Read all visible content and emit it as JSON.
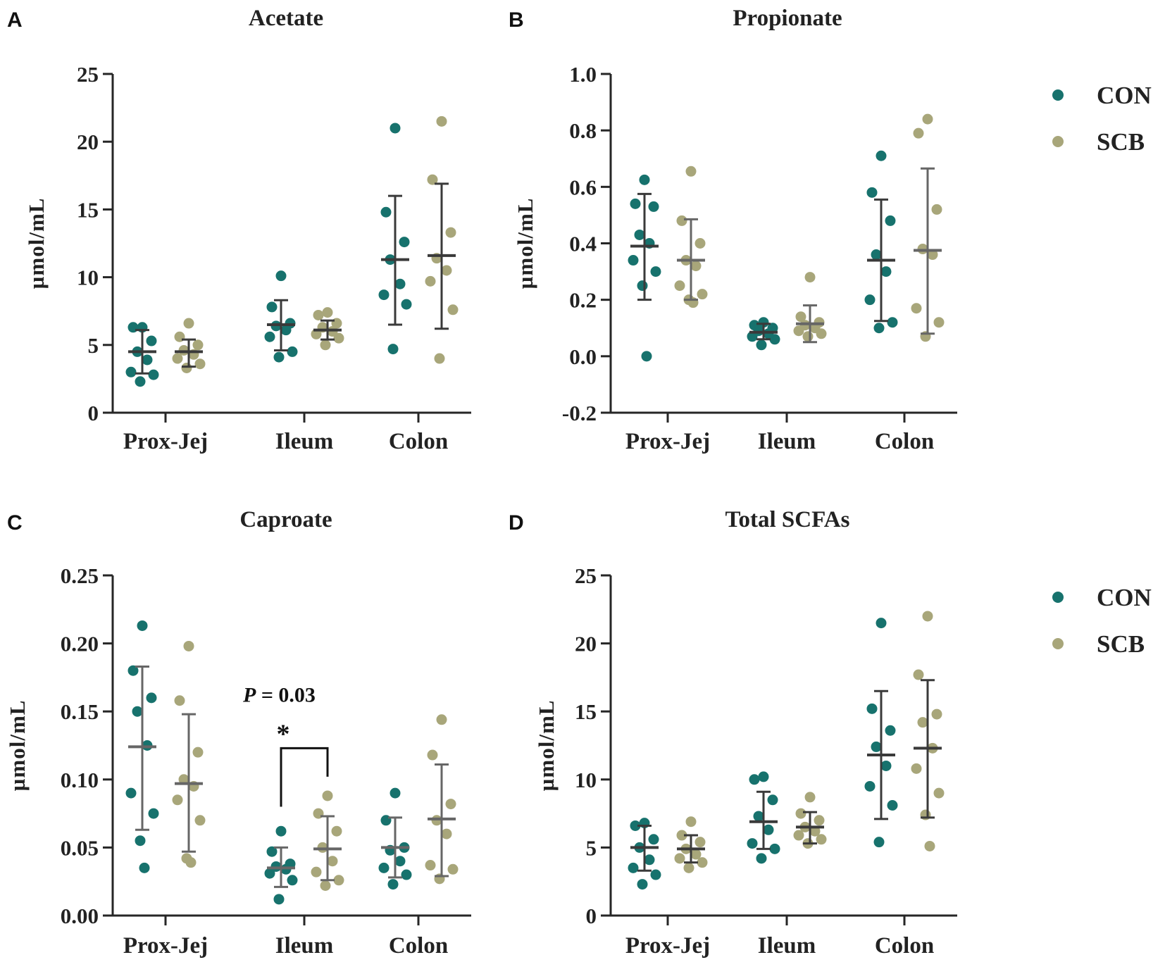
{
  "figure": {
    "legend": [
      {
        "name": "CON",
        "color": "#17726d"
      },
      {
        "name": "SCB",
        "color": "#a8a67a"
      }
    ]
  },
  "chart_data": [
    {
      "panel": "A",
      "type": "scatter",
      "title": "Acetate",
      "ylabel": "µmol/mL",
      "xlabel": "",
      "categories": [
        "Prox-Jej",
        "Ileum",
        "Colon"
      ],
      "ylim": [
        0,
        25
      ],
      "yticks": [
        0,
        5,
        10,
        15,
        20,
        25
      ],
      "ytick_labels": [
        "0",
        "5",
        "10",
        "15",
        "20",
        "25"
      ],
      "legend_shown": false,
      "series": [
        {
          "name": "CON",
          "color": "#17726d",
          "mean_color": "#3a3a3a",
          "groups": [
            {
              "mean": 4.5,
              "sd_low": 2.9,
              "sd_high": 6.1,
              "points": [
                6.3,
                6.3,
                5.3,
                4.5,
                3.9,
                3.0,
                2.8,
                2.3
              ]
            },
            {
              "mean": 6.5,
              "sd_low": 4.6,
              "sd_high": 8.3,
              "points": [
                10.1,
                7.8,
                6.6,
                6.4,
                6.1,
                5.6,
                4.5,
                4.1
              ]
            },
            {
              "mean": 11.3,
              "sd_low": 6.5,
              "sd_high": 16.0,
              "points": [
                21.0,
                14.8,
                12.6,
                11.3,
                9.5,
                8.7,
                8.0,
                4.7
              ]
            }
          ]
        },
        {
          "name": "SCB",
          "color": "#a8a67a",
          "mean_color": "#3a3a3a",
          "groups": [
            {
              "mean": 4.5,
              "sd_low": 3.4,
              "sd_high": 5.4,
              "points": [
                6.6,
                5.6,
                5.0,
                4.6,
                4.3,
                4.0,
                3.6,
                3.3
              ]
            },
            {
              "mean": 6.1,
              "sd_low": 5.4,
              "sd_high": 6.8,
              "points": [
                7.4,
                7.2,
                6.6,
                6.3,
                6.0,
                5.8,
                5.5,
                5.0
              ]
            },
            {
              "mean": 11.6,
              "sd_low": 6.2,
              "sd_high": 16.9,
              "points": [
                21.5,
                17.2,
                13.3,
                11.4,
                10.5,
                9.7,
                7.6,
                4.0
              ]
            }
          ]
        }
      ]
    },
    {
      "panel": "B",
      "type": "scatter",
      "title": "Propionate",
      "ylabel": "µmol/mL",
      "xlabel": "",
      "categories": [
        "Prox-Jej",
        "Ileum",
        "Colon"
      ],
      "ylim": [
        -0.2,
        1.0
      ],
      "yticks": [
        -0.2,
        0.0,
        0.2,
        0.4,
        0.6,
        0.8,
        1.0
      ],
      "ytick_labels": [
        "-0.2",
        "0.0",
        "0.2",
        "0.4",
        "0.6",
        "0.8",
        "1.0"
      ],
      "legend_shown": true,
      "series": [
        {
          "name": "CON",
          "color": "#17726d",
          "mean_color": "#3a3a3a",
          "groups": [
            {
              "mean": 0.39,
              "sd_low": 0.2,
              "sd_high": 0.575,
              "points": [
                0.625,
                0.54,
                0.53,
                0.43,
                0.4,
                0.34,
                0.3,
                0.25,
                0.0
              ]
            },
            {
              "mean": 0.085,
              "sd_low": 0.06,
              "sd_high": 0.115,
              "points": [
                0.12,
                0.11,
                0.1,
                0.09,
                0.08,
                0.07,
                0.06,
                0.04
              ]
            },
            {
              "mean": 0.34,
              "sd_low": 0.125,
              "sd_high": 0.555,
              "points": [
                0.71,
                0.58,
                0.48,
                0.36,
                0.3,
                0.2,
                0.12,
                0.1
              ]
            }
          ]
        },
        {
          "name": "SCB",
          "color": "#a8a67a",
          "mean_color": "#666666",
          "groups": [
            {
              "mean": 0.34,
              "sd_low": 0.2,
              "sd_high": 0.485,
              "points": [
                0.655,
                0.48,
                0.4,
                0.34,
                0.32,
                0.25,
                0.22,
                0.2,
                0.19
              ]
            },
            {
              "mean": 0.115,
              "sd_low": 0.05,
              "sd_high": 0.18,
              "points": [
                0.28,
                0.14,
                0.12,
                0.11,
                0.1,
                0.09,
                0.08,
                0.07
              ]
            },
            {
              "mean": 0.375,
              "sd_low": 0.08,
              "sd_high": 0.665,
              "points": [
                0.84,
                0.79,
                0.52,
                0.38,
                0.36,
                0.17,
                0.12,
                0.07
              ]
            }
          ]
        }
      ]
    },
    {
      "panel": "C",
      "type": "scatter",
      "title": "Caproate",
      "ylabel": "µmol/mL",
      "xlabel": "",
      "categories": [
        "Prox-Jej",
        "Ileum",
        "Colon"
      ],
      "ylim": [
        0,
        0.25
      ],
      "yticks": [
        0,
        0.05,
        0.1,
        0.15,
        0.2,
        0.25
      ],
      "ytick_labels": [
        "0.00",
        "0.05",
        "0.10",
        "0.15",
        "0.20",
        "0.25"
      ],
      "legend_shown": false,
      "annotation": {
        "p_italic": "P",
        "p_rest": " = 0.03",
        "star": "*",
        "between_group": "Ileum"
      },
      "series": [
        {
          "name": "CON",
          "color": "#17726d",
          "mean_color": "#666666",
          "groups": [
            {
              "mean": 0.124,
              "sd_low": 0.063,
              "sd_high": 0.183,
              "points": [
                0.213,
                0.18,
                0.16,
                0.15,
                0.125,
                0.09,
                0.075,
                0.055,
                0.035
              ]
            },
            {
              "mean": 0.035,
              "sd_low": 0.021,
              "sd_high": 0.05,
              "points": [
                0.062,
                0.047,
                0.038,
                0.036,
                0.034,
                0.031,
                0.026,
                0.012
              ]
            },
            {
              "mean": 0.05,
              "sd_low": 0.028,
              "sd_high": 0.072,
              "points": [
                0.09,
                0.07,
                0.05,
                0.048,
                0.04,
                0.035,
                0.03,
                0.023
              ]
            }
          ]
        },
        {
          "name": "SCB",
          "color": "#a8a67a",
          "mean_color": "#666666",
          "groups": [
            {
              "mean": 0.097,
              "sd_low": 0.047,
              "sd_high": 0.148,
              "points": [
                0.198,
                0.158,
                0.12,
                0.1,
                0.095,
                0.085,
                0.07,
                0.042,
                0.039
              ]
            },
            {
              "mean": 0.049,
              "sd_low": 0.026,
              "sd_high": 0.073,
              "points": [
                0.088,
                0.075,
                0.062,
                0.05,
                0.04,
                0.032,
                0.026,
                0.022
              ]
            },
            {
              "mean": 0.071,
              "sd_low": 0.029,
              "sd_high": 0.111,
              "points": [
                0.144,
                0.118,
                0.082,
                0.07,
                0.06,
                0.037,
                0.034,
                0.027
              ]
            }
          ]
        }
      ]
    },
    {
      "panel": "D",
      "type": "scatter",
      "title": "Total SCFAs",
      "ylabel": "µmol/mL",
      "xlabel": "",
      "categories": [
        "Prox-Jej",
        "Ileum",
        "Colon"
      ],
      "ylim": [
        0,
        25
      ],
      "yticks": [
        0,
        5,
        10,
        15,
        20,
        25
      ],
      "ytick_labels": [
        "0",
        "5",
        "10",
        "15",
        "20",
        "25"
      ],
      "legend_shown": true,
      "series": [
        {
          "name": "CON",
          "color": "#17726d",
          "mean_color": "#3a3a3a",
          "groups": [
            {
              "mean": 5.0,
              "sd_low": 3.3,
              "sd_high": 6.6,
              "points": [
                6.8,
                6.6,
                5.6,
                5.0,
                4.1,
                3.5,
                3.0,
                2.3
              ]
            },
            {
              "mean": 6.9,
              "sd_low": 4.9,
              "sd_high": 9.1,
              "points": [
                10.2,
                10.0,
                8.5,
                7.3,
                6.3,
                5.3,
                4.9,
                4.2
              ]
            },
            {
              "mean": 11.8,
              "sd_low": 7.1,
              "sd_high": 16.5,
              "points": [
                21.5,
                15.2,
                13.6,
                12.4,
                11.0,
                9.5,
                8.1,
                5.4
              ]
            }
          ]
        },
        {
          "name": "SCB",
          "color": "#a8a67a",
          "mean_color": "#3a3a3a",
          "groups": [
            {
              "mean": 4.9,
              "sd_low": 3.9,
              "sd_high": 5.9,
              "points": [
                6.9,
                5.9,
                5.4,
                4.9,
                4.5,
                4.2,
                3.9,
                3.5
              ]
            },
            {
              "mean": 6.5,
              "sd_low": 5.3,
              "sd_high": 7.6,
              "points": [
                8.7,
                7.5,
                7.0,
                6.5,
                6.2,
                5.9,
                5.6,
                5.3
              ]
            },
            {
              "mean": 12.3,
              "sd_low": 7.2,
              "sd_high": 17.3,
              "points": [
                22.0,
                17.7,
                14.8,
                14.2,
                12.3,
                10.8,
                9.0,
                7.4,
                5.1
              ]
            }
          ]
        }
      ]
    }
  ]
}
